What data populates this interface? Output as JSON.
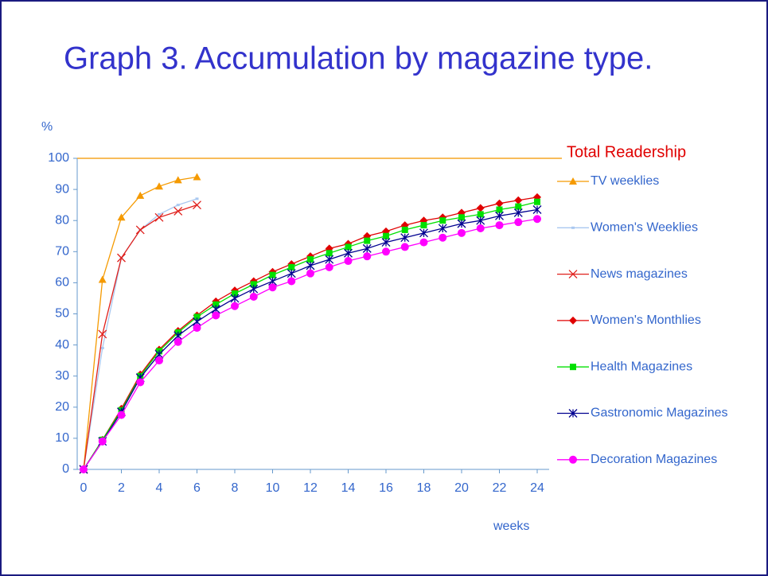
{
  "chart_data": {
    "type": "line",
    "title": "Graph 3. Accumulation by magazine type.",
    "ylabel": "%",
    "xlabel": "weeks",
    "x": [
      0,
      1,
      2,
      3,
      4,
      5,
      6,
      7,
      8,
      9,
      10,
      11,
      12,
      13,
      14,
      15,
      16,
      17,
      18,
      19,
      20,
      21,
      22,
      23,
      24
    ],
    "xlim": [
      0,
      24
    ],
    "xticks": [
      0,
      2,
      4,
      6,
      8,
      10,
      12,
      14,
      16,
      18,
      20,
      22,
      24
    ],
    "ylim": [
      0,
      100
    ],
    "yticks": [
      0,
      10,
      20,
      30,
      40,
      50,
      60,
      70,
      80,
      90,
      100
    ],
    "reference_line": {
      "label": "Total Readership",
      "value": 100,
      "color": "#f5a623"
    },
    "series": [
      {
        "name": "TV weeklies",
        "color": "#f59a00",
        "marker": "triangle",
        "values": [
          0,
          61,
          81,
          88,
          91,
          93,
          94,
          null,
          null,
          null,
          null,
          null,
          null,
          null,
          null,
          null,
          null,
          null,
          null,
          null,
          null,
          null,
          null,
          null,
          null
        ]
      },
      {
        "name": "Women's Weeklies",
        "color": "#a9c8f0",
        "marker": "square-small",
        "values": [
          0,
          39,
          68,
          77,
          82,
          85,
          87,
          null,
          null,
          null,
          null,
          null,
          null,
          null,
          null,
          null,
          null,
          null,
          null,
          null,
          null,
          null,
          null,
          null,
          null
        ]
      },
      {
        "name": "News magazines",
        "color": "#e0201c",
        "marker": "x",
        "values": [
          0,
          43.5,
          68,
          77,
          81,
          83,
          85,
          null,
          null,
          null,
          null,
          null,
          null,
          null,
          null,
          null,
          null,
          null,
          null,
          null,
          null,
          null,
          null,
          null,
          null
        ]
      },
      {
        "name": "Women's Monthlies",
        "color": "#e00000",
        "marker": "diamond",
        "values": [
          0,
          9.5,
          19.5,
          30.5,
          38.5,
          44.5,
          49.5,
          54,
          57.5,
          60.5,
          63.5,
          66,
          68.5,
          71,
          72.5,
          75,
          76.5,
          78.5,
          80,
          81,
          82.5,
          84,
          85.5,
          86.5,
          87.5
        ]
      },
      {
        "name": "Health Magazines",
        "color": "#00e000",
        "marker": "square",
        "values": [
          0,
          9.5,
          19,
          30,
          38,
          44,
          49,
          53,
          56.5,
          59.5,
          62.5,
          65,
          67.5,
          69.5,
          71.5,
          73.5,
          75,
          77,
          78.5,
          80,
          81,
          82,
          83.5,
          84.5,
          86
        ]
      },
      {
        "name": "Gastronomic Magazines",
        "color": "#000090",
        "marker": "star",
        "values": [
          0,
          9,
          18.5,
          29.5,
          37,
          43,
          47.5,
          51.5,
          55,
          58,
          60.5,
          63,
          65.5,
          67.5,
          69.5,
          71,
          73,
          74.5,
          76,
          77.5,
          79,
          80,
          81.5,
          82.5,
          83.5
        ]
      },
      {
        "name": "Decoration Magazines",
        "color": "#ff00ff",
        "marker": "circle",
        "values": [
          0,
          9,
          17.5,
          28,
          35,
          41,
          45.5,
          49.5,
          52.5,
          55.5,
          58.5,
          60.5,
          63,
          65,
          67,
          68.5,
          70,
          71.5,
          73,
          74.5,
          76,
          77.5,
          78.5,
          79.5,
          80.5
        ]
      }
    ]
  }
}
